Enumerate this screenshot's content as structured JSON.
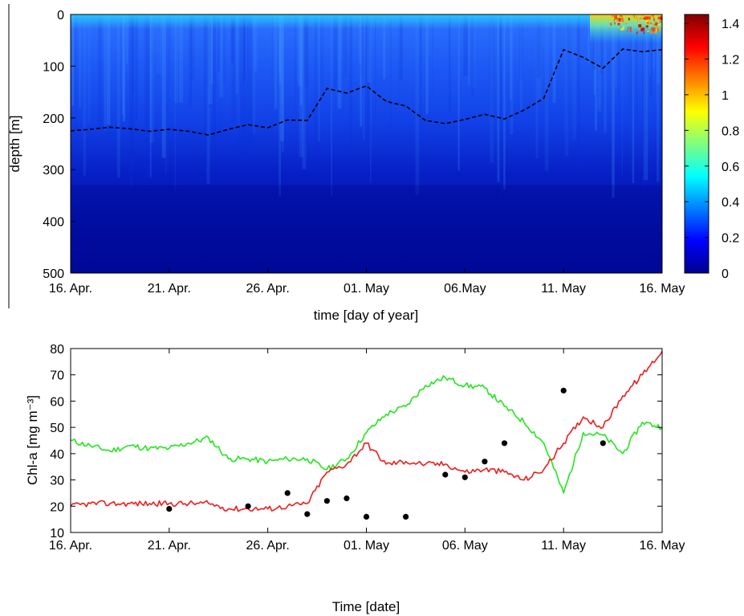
{
  "colors": {
    "green_series": "#22e61e",
    "red_series": "#ee1c1c",
    "dots": "#000000",
    "isoline": "#000000"
  },
  "chart_data": [
    {
      "type": "heatmap",
      "xlabel": "time [day of year]",
      "ylabel": "depth [m]",
      "x_tick_labels": [
        "16. Apr.",
        "21. Apr.",
        "26. Apr.",
        "01. May",
        "06.May",
        "11. May",
        "16. May"
      ],
      "x_ticks": [
        "2014-04-16",
        "2014-04-21",
        "2014-04-26",
        "2014-05-01",
        "2014-05-06",
        "2014-05-11",
        "2014-05-16"
      ],
      "xlim": [
        "2014-04-16",
        "2014-05-16"
      ],
      "y_tick_labels": [
        "0",
        "100",
        "200",
        "300",
        "400",
        "500"
      ],
      "y_ticks": [
        0,
        100,
        200,
        300,
        400,
        500
      ],
      "ylim": [
        0,
        500
      ],
      "y_reversed": true,
      "colorbar": {
        "colormap": "jet",
        "range": [
          0,
          1.45
        ],
        "tick_labels": [
          "0",
          "0.2",
          "0.4",
          "0.6",
          "0.8",
          "1",
          "1.2",
          "1.4"
        ],
        "ticks": [
          0,
          0.2,
          0.4,
          0.6,
          0.8,
          1.0,
          1.2,
          1.4
        ]
      },
      "dashed_line": {
        "x": [
          "2014-04-16",
          "2014-04-17",
          "2014-04-18",
          "2014-04-19",
          "2014-04-20",
          "2014-04-21",
          "2014-04-22",
          "2014-04-23",
          "2014-04-24",
          "2014-04-25",
          "2014-04-26",
          "2014-04-27",
          "2014-04-28",
          "2014-04-29",
          "2014-04-30",
          "2014-05-01",
          "2014-05-02",
          "2014-05-03",
          "2014-05-04",
          "2014-05-05",
          "2014-05-06",
          "2014-05-07",
          "2014-05-08",
          "2014-05-09",
          "2014-05-10",
          "2014-05-11",
          "2014-05-12",
          "2014-05-13",
          "2014-05-14",
          "2014-05-15",
          "2014-05-16"
        ],
        "y": [
          225,
          222,
          218,
          221,
          226,
          222,
          226,
          233,
          222,
          213,
          219,
          204,
          205,
          143,
          152,
          138,
          168,
          177,
          205,
          211,
          203,
          193,
          202,
          185,
          162,
          68,
          83,
          104,
          67,
          72,
          68
        ]
      }
    },
    {
      "type": "line",
      "xlabel": "Time [date]",
      "ylabel": "Chl-a [mg m⁻³]",
      "x_tick_labels": [
        "16. Apr.",
        "21. Apr.",
        "26. Apr.",
        "01. May",
        "06. May",
        "11. May",
        "16. May"
      ],
      "x_ticks": [
        "2014-04-16",
        "2014-04-21",
        "2014-04-26",
        "2014-05-01",
        "2014-05-06",
        "2014-05-11",
        "2014-05-16"
      ],
      "xlim": [
        "2014-04-16",
        "2014-05-16"
      ],
      "y_tick_labels": [
        "10",
        "20",
        "30",
        "40",
        "50",
        "60",
        "70",
        "80"
      ],
      "y_ticks": [
        10,
        20,
        30,
        40,
        50,
        60,
        70,
        80
      ],
      "ylim": [
        10,
        80
      ],
      "series": [
        {
          "color": "#22e61e",
          "x": [
            "2014-04-16",
            "2014-04-17",
            "2014-04-18",
            "2014-04-19",
            "2014-04-20",
            "2014-04-21",
            "2014-04-22",
            "2014-04-23",
            "2014-04-24",
            "2014-04-25",
            "2014-04-26",
            "2014-04-27",
            "2014-04-28",
            "2014-04-29",
            "2014-04-30",
            "2014-05-01",
            "2014-05-02",
            "2014-05-03",
            "2014-05-04",
            "2014-05-05",
            "2014-05-06",
            "2014-05-07",
            "2014-05-08",
            "2014-05-09",
            "2014-05-10",
            "2014-05-11",
            "2014-05-12",
            "2014-05-13",
            "2014-05-14",
            "2014-05-15",
            "2014-05-16"
          ],
          "values": [
            45,
            43,
            41,
            43,
            42,
            42,
            44,
            46,
            38,
            38,
            37,
            38,
            38,
            34,
            38,
            48,
            55,
            58,
            66,
            69,
            66,
            65,
            58,
            52,
            44,
            25,
            48,
            47,
            40,
            52,
            50
          ]
        },
        {
          "color": "#ee1c1c",
          "x": [
            "2014-04-16",
            "2014-04-17",
            "2014-04-18",
            "2014-04-19",
            "2014-04-20",
            "2014-04-21",
            "2014-04-22",
            "2014-04-23",
            "2014-04-24",
            "2014-04-25",
            "2014-04-26",
            "2014-04-27",
            "2014-04-28",
            "2014-04-29",
            "2014-04-30",
            "2014-05-01",
            "2014-05-02",
            "2014-05-03",
            "2014-05-04",
            "2014-05-05",
            "2014-05-06",
            "2014-05-07",
            "2014-05-08",
            "2014-05-09",
            "2014-05-10",
            "2014-05-11",
            "2014-05-12",
            "2014-05-13",
            "2014-05-14",
            "2014-05-15",
            "2014-05-16"
          ],
          "values": [
            20,
            21,
            21,
            21,
            21,
            21,
            21,
            21,
            19,
            19,
            19,
            20,
            21,
            33,
            36,
            44,
            36,
            37,
            36,
            36,
            33,
            34,
            33,
            30,
            34,
            44,
            54,
            50,
            62,
            70,
            79
          ]
        }
      ],
      "points": {
        "color": "#000000",
        "x": [
          "2014-04-21",
          "2014-04-25",
          "2014-04-27",
          "2014-04-28",
          "2014-04-29",
          "2014-04-30",
          "2014-05-01",
          "2014-05-03",
          "2014-05-05",
          "2014-05-06",
          "2014-05-07",
          "2014-05-08",
          "2014-05-11",
          "2014-05-13"
        ],
        "values": [
          19,
          20,
          25,
          17,
          22,
          23,
          16,
          16,
          32,
          31,
          37,
          44,
          64,
          44
        ]
      }
    }
  ]
}
